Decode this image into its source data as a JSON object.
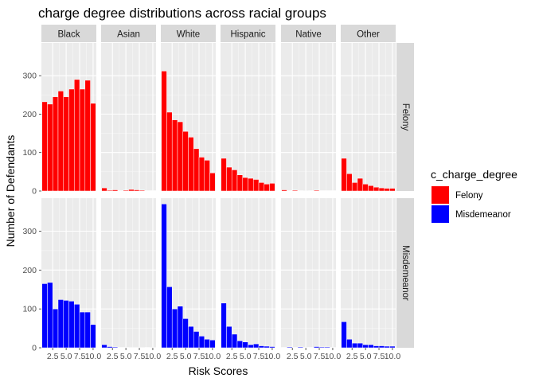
{
  "chart_data": {
    "type": "bar",
    "title": "charge degree distributions across racial groups",
    "xlabel": "Risk Scores",
    "ylabel": "Number of Defendants",
    "x_breaks": [
      2.5,
      5.0,
      7.5,
      10.0
    ],
    "x_tick_labels": [
      "2.5",
      "5.0",
      "7.5",
      "10.0"
    ],
    "y_breaks": [
      0,
      100,
      200,
      300
    ],
    "ylim": [
      0,
      385
    ],
    "columns": [
      "Black",
      "Asian",
      "White",
      "Hispanic",
      "Native",
      "Other"
    ],
    "rows": [
      "Felony",
      "Misdemeanor"
    ],
    "legend": {
      "title": "c_charge_degree",
      "position": "right",
      "items": [
        {
          "label": "Felony",
          "color": "#ff0000"
        },
        {
          "label": "Misdemeanor",
          "color": "#0000ff"
        }
      ]
    },
    "x": [
      1,
      2,
      3,
      4,
      5,
      6,
      7,
      8,
      9,
      10
    ],
    "panels": [
      {
        "column": "Black",
        "row": "Felony",
        "values": [
          232,
          226,
          245,
          260,
          245,
          265,
          290,
          265,
          288,
          228
        ]
      },
      {
        "column": "Asian",
        "row": "Felony",
        "values": [
          8,
          2,
          3,
          1,
          2,
          4,
          3,
          2,
          1,
          1
        ]
      },
      {
        "column": "White",
        "row": "Felony",
        "values": [
          312,
          205,
          185,
          180,
          155,
          140,
          110,
          88,
          80,
          47
        ]
      },
      {
        "column": "Hispanic",
        "row": "Felony",
        "values": [
          85,
          62,
          55,
          42,
          35,
          33,
          30,
          22,
          18,
          20
        ]
      },
      {
        "column": "Native",
        "row": "Felony",
        "values": [
          3,
          1,
          2,
          1,
          0,
          1,
          2,
          1,
          1,
          1
        ]
      },
      {
        "column": "Other",
        "row": "Felony",
        "values": [
          85,
          45,
          22,
          33,
          18,
          14,
          10,
          8,
          7,
          7
        ]
      },
      {
        "column": "Black",
        "row": "Misdemeanor",
        "values": [
          165,
          168,
          100,
          124,
          122,
          120,
          112,
          92,
          92,
          60
        ]
      },
      {
        "column": "Asian",
        "row": "Misdemeanor",
        "values": [
          8,
          3,
          2,
          1,
          1,
          0,
          0,
          0,
          1,
          0
        ]
      },
      {
        "column": "White",
        "row": "Misdemeanor",
        "values": [
          370,
          157,
          100,
          107,
          75,
          55,
          42,
          30,
          22,
          20
        ]
      },
      {
        "column": "Hispanic",
        "row": "Misdemeanor",
        "values": [
          115,
          55,
          35,
          18,
          15,
          8,
          10,
          5,
          4,
          3
        ]
      },
      {
        "column": "Native",
        "row": "Misdemeanor",
        "values": [
          1,
          2,
          1,
          2,
          1,
          1,
          3,
          2,
          2,
          1
        ]
      },
      {
        "column": "Other",
        "row": "Misdemeanor",
        "values": [
          67,
          22,
          12,
          12,
          8,
          8,
          5,
          5,
          4,
          4
        ]
      }
    ]
  }
}
